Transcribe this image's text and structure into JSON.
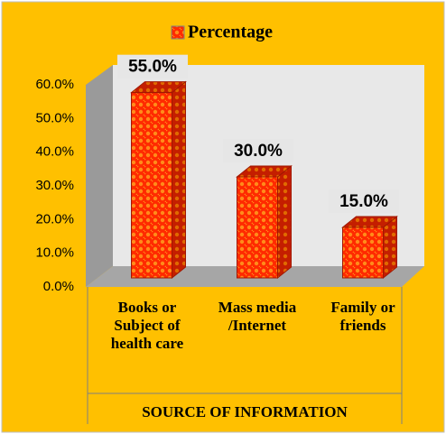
{
  "chart_data": {
    "type": "bar3d",
    "categories": [
      "Books or Subject of health care",
      "Mass media /Internet",
      "Family or friends"
    ],
    "series": [
      {
        "name": "Percentage",
        "color": "#ff2a00",
        "values": [
          55,
          30,
          15
        ],
        "value_labels": [
          "55.0%",
          "30.0%",
          "15.0%"
        ]
      }
    ],
    "x_label": "SOURCE OF INFORMATION",
    "ylim": [
      0,
      60
    ],
    "yticks": [
      {
        "value": 0,
        "label": "0.0%"
      },
      {
        "value": 10,
        "label": "10.0%"
      },
      {
        "value": 20,
        "label": "20.0%"
      },
      {
        "value": 30,
        "label": "30.0%"
      },
      {
        "value": 40,
        "label": "40.0%"
      },
      {
        "value": 50,
        "label": "50.0%"
      },
      {
        "value": 60,
        "label": "60.0%"
      }
    ],
    "legend": "top"
  }
}
